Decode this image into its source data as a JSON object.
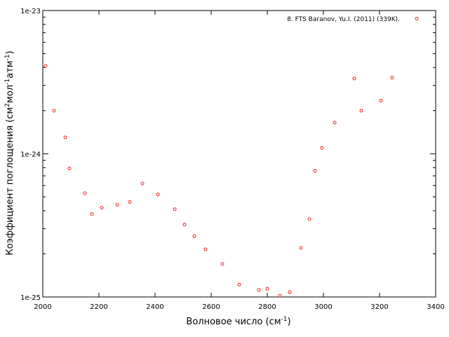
{
  "chart_data": {
    "type": "scatter",
    "title": "",
    "xlabel": {
      "text": "Волновое число (см",
      "sup": "-1",
      "after": ")"
    },
    "ylabel": {
      "parts": [
        {
          "t": "Коэффициент поглощения (см"
        },
        {
          "t": "2",
          "sup": true
        },
        {
          "t": "мол"
        },
        {
          "t": "-1",
          "sup": true
        },
        {
          "t": "атм"
        },
        {
          "t": "-1",
          "sup": true
        },
        {
          "t": ")"
        }
      ]
    },
    "xlim": [
      2000,
      3400
    ],
    "ylim": [
      1e-25,
      1e-23
    ],
    "yscale": "log",
    "grid": false,
    "legend_position": "top-right",
    "x_ticks": [
      "2000",
      "2200",
      "2400",
      "2600",
      "2800",
      "3000",
      "3200",
      "3400"
    ],
    "y_ticks": [
      "1e-25",
      "1e-24",
      "1e-23"
    ],
    "marker_color": "#e8251d",
    "series": [
      {
        "name": "8. FTS Baranov, Yu.I. (2011) (339K).",
        "points": [
          {
            "x": 2010,
            "y": 4.1e-24
          },
          {
            "x": 2040,
            "y": 2e-24
          },
          {
            "x": 2080,
            "y": 1.3e-24
          },
          {
            "x": 2095,
            "y": 7.9e-25
          },
          {
            "x": 2150,
            "y": 5.3e-25
          },
          {
            "x": 2175,
            "y": 3.8e-25
          },
          {
            "x": 2210,
            "y": 4.2e-25
          },
          {
            "x": 2265,
            "y": 4.4e-25
          },
          {
            "x": 2310,
            "y": 4.6e-25
          },
          {
            "x": 2355,
            "y": 6.2e-25
          },
          {
            "x": 2410,
            "y": 5.2e-25
          },
          {
            "x": 2470,
            "y": 4.1e-25
          },
          {
            "x": 2505,
            "y": 3.2e-25
          },
          {
            "x": 2540,
            "y": 2.65e-25
          },
          {
            "x": 2580,
            "y": 2.15e-25
          },
          {
            "x": 2640,
            "y": 1.7e-25
          },
          {
            "x": 2700,
            "y": 1.22e-25
          },
          {
            "x": 2770,
            "y": 1.12e-25
          },
          {
            "x": 2800,
            "y": 1.14e-25
          },
          {
            "x": 2845,
            "y": 1.02e-25
          },
          {
            "x": 2880,
            "y": 1.08e-25
          },
          {
            "x": 2920,
            "y": 2.2e-25
          },
          {
            "x": 2950,
            "y": 3.5e-25
          },
          {
            "x": 2970,
            "y": 7.6e-25
          },
          {
            "x": 2995,
            "y": 1.1e-24
          },
          {
            "x": 3040,
            "y": 1.65e-24
          },
          {
            "x": 3110,
            "y": 3.35e-24
          },
          {
            "x": 3135,
            "y": 2e-24
          },
          {
            "x": 3205,
            "y": 2.35e-24
          },
          {
            "x": 3245,
            "y": 3.4e-24
          }
        ]
      }
    ]
  }
}
